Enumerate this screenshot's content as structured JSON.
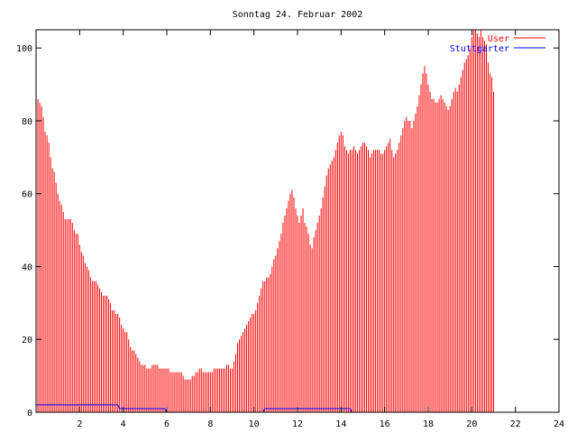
{
  "chart_data": {
    "type": "bar",
    "title": "Sonntag 24. Februar 2002",
    "xlabel": "",
    "ylabel": "",
    "xlim": [
      0,
      24
    ],
    "ylim": [
      0,
      105
    ],
    "x_ticks": [
      2,
      4,
      6,
      8,
      10,
      12,
      14,
      16,
      18,
      20,
      22,
      24
    ],
    "y_ticks": [
      0,
      20,
      40,
      60,
      80,
      100
    ],
    "grid": false,
    "legend": "top-right",
    "bins_per_hour": 12,
    "colors": {
      "User": "#ff0000",
      "Stuttgarter": "#0000ff",
      "axis": "#000000"
    },
    "series": [
      {
        "name": "User",
        "style": "impulses",
        "values": [
          90,
          86,
          85,
          84,
          81,
          77,
          76,
          74,
          70,
          67,
          66,
          63,
          60,
          58,
          57,
          55,
          53,
          53,
          53,
          53,
          52,
          50,
          49,
          49,
          46,
          44,
          43,
          41,
          40,
          39,
          37,
          36,
          36,
          36,
          35,
          34,
          33,
          32,
          32,
          32,
          31,
          30,
          28,
          28,
          27,
          27,
          26,
          24,
          23,
          22,
          22,
          20,
          18,
          17,
          17,
          16,
          15,
          14,
          13,
          13,
          13,
          12,
          12,
          12,
          13,
          13,
          13,
          13,
          12,
          12,
          12,
          12,
          12,
          12,
          11,
          11,
          11,
          11,
          11,
          11,
          11,
          10,
          9,
          9,
          9,
          9,
          10,
          10,
          11,
          11,
          12,
          12,
          11,
          11,
          11,
          11,
          11,
          11,
          12,
          12,
          12,
          12,
          12,
          12,
          12,
          13,
          13,
          12,
          12,
          14,
          16,
          19,
          20,
          21,
          22,
          23,
          24,
          25,
          26,
          27,
          27,
          28,
          30,
          32,
          34,
          36,
          36,
          37,
          37,
          38,
          40,
          42,
          43,
          45,
          47,
          49,
          52,
          54,
          56,
          58,
          60,
          61,
          59,
          56,
          54,
          52,
          54,
          56,
          52,
          51,
          49,
          46,
          45,
          48,
          50,
          52,
          54,
          56,
          59,
          62,
          65,
          67,
          68,
          69,
          70,
          72,
          74,
          76,
          77,
          76,
          73,
          72,
          71,
          72,
          72,
          73,
          72,
          71,
          72,
          73,
          74,
          74,
          73,
          72,
          70,
          71,
          72,
          72,
          72,
          72,
          71,
          71,
          72,
          73,
          74,
          75,
          72,
          70,
          71,
          72,
          74,
          76,
          78,
          80,
          81,
          80,
          80,
          78,
          80,
          82,
          84,
          87,
          90,
          93,
          95,
          93,
          90,
          88,
          86,
          86,
          85,
          85,
          86,
          87,
          86,
          85,
          84,
          83,
          84,
          86,
          88,
          89,
          88,
          90,
          92,
          94,
          96,
          97,
          98,
          100,
          103,
          105,
          105,
          104,
          103,
          105,
          103,
          102,
          101,
          96,
          93,
          92,
          88
        ]
      },
      {
        "name": "Stuttgarter",
        "style": "line",
        "values": [
          2,
          2,
          2,
          2,
          2,
          2,
          2,
          2,
          2,
          2,
          2,
          2,
          2,
          2,
          2,
          2,
          2,
          2,
          2,
          2,
          2,
          2,
          2,
          2,
          2,
          2,
          2,
          2,
          2,
          2,
          2,
          2,
          2,
          2,
          2,
          2,
          2,
          2,
          2,
          2,
          2,
          2,
          2,
          2,
          2,
          2,
          1,
          1,
          1,
          1,
          1,
          1,
          1,
          1,
          1,
          1,
          1,
          1,
          1,
          1,
          1,
          1,
          1,
          1,
          1,
          1,
          1,
          1,
          1,
          1,
          1,
          1,
          0,
          0,
          0,
          0,
          0,
          0,
          0,
          0,
          0,
          0,
          0,
          0,
          0,
          0,
          0,
          0,
          0,
          0,
          0,
          0,
          0,
          0,
          0,
          0,
          0,
          0,
          0,
          0,
          0,
          0,
          0,
          0,
          0,
          0,
          0,
          0,
          0,
          0,
          0,
          0,
          0,
          0,
          0,
          0,
          0,
          0,
          0,
          0,
          0,
          0,
          0,
          0,
          0,
          0,
          1,
          1,
          1,
          1,
          1,
          1,
          1,
          1,
          1,
          1,
          1,
          1,
          1,
          1,
          1,
          1,
          1,
          1,
          1,
          1,
          1,
          1,
          1,
          1,
          1,
          1,
          1,
          1,
          1,
          1,
          1,
          1,
          1,
          1,
          1,
          1,
          1,
          1,
          1,
          1,
          1,
          1,
          1,
          1,
          1,
          1,
          1,
          1,
          0,
          0,
          0,
          0,
          0,
          0,
          0,
          0,
          0,
          0,
          0,
          0,
          0,
          0,
          0,
          0,
          0,
          0,
          0,
          0,
          0,
          0,
          0,
          0,
          0,
          0,
          0,
          0,
          0,
          0,
          0,
          0,
          0,
          0,
          0,
          0,
          0,
          0,
          0,
          0,
          0,
          0,
          0,
          0,
          0,
          0,
          0,
          0,
          0,
          0,
          0,
          0,
          0,
          0,
          0,
          0,
          0,
          0,
          0,
          0,
          0,
          0,
          0,
          0,
          0,
          0,
          0,
          0,
          0,
          0,
          0,
          0,
          0,
          0,
          0,
          0,
          0,
          0,
          0
        ]
      }
    ]
  }
}
